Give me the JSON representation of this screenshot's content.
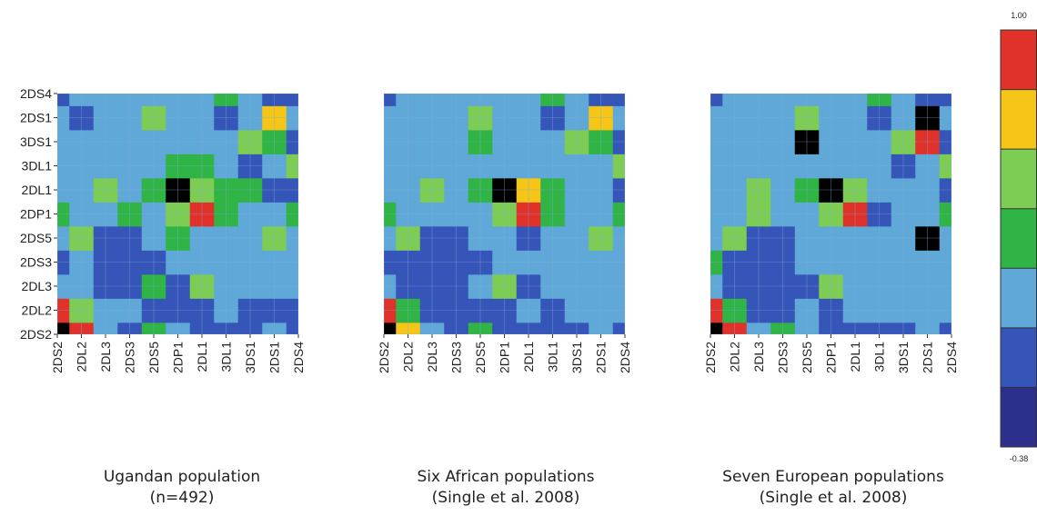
{
  "chart_data": {
    "type": "heatmap",
    "labels": [
      "2DS2",
      "2DL2",
      "2DL3",
      "2DS3",
      "2DS5",
      "2DP1",
      "2DL1",
      "3DL1",
      "3DS1",
      "2DS1",
      "2DS4"
    ],
    "colorbar": {
      "max_label": "1.00",
      "min_label": "-0.38",
      "colors_top_to_bottom": [
        "#e0312a",
        "#f5c518",
        "#7dcd55",
        "#2fb445",
        "#5fa8d8",
        "#3555b8",
        "#2d2f8c"
      ]
    },
    "panels": [
      {
        "caption_line1": "Ugandan population",
        "caption_line2": "(n=492)",
        "show_y_labels": true,
        "matrix": [
          [
            7,
            6,
            2,
            1,
            3,
            2,
            1,
            1,
            1,
            2,
            1
          ],
          [
            6,
            4,
            2,
            2,
            1,
            1,
            1,
            2,
            1,
            1,
            1
          ],
          [
            2,
            2,
            1,
            1,
            3,
            1,
            4,
            2,
            2,
            2,
            2
          ],
          [
            1,
            2,
            1,
            1,
            1,
            2,
            2,
            2,
            2,
            2,
            2
          ],
          [
            2,
            4,
            1,
            1,
            2,
            3,
            2,
            2,
            2,
            4,
            2
          ],
          [
            3,
            2,
            2,
            3,
            2,
            4,
            6,
            3,
            2,
            2,
            3
          ],
          [
            2,
            2,
            4,
            2,
            3,
            7,
            4,
            3,
            3,
            1,
            1
          ],
          [
            2,
            2,
            2,
            2,
            2,
            3,
            3,
            2,
            1,
            2,
            4
          ],
          [
            2,
            2,
            2,
            2,
            2,
            2,
            2,
            2,
            4,
            3,
            1
          ],
          [
            2,
            1,
            2,
            2,
            4,
            2,
            2,
            1,
            2,
            5,
            2
          ],
          [
            1,
            2,
            2,
            2,
            2,
            2,
            2,
            3,
            2,
            1,
            1
          ]
        ]
      },
      {
        "caption_line1": "Six African populations",
        "caption_line2": "(Single et al. 2008)",
        "show_y_labels": false,
        "matrix": [
          [
            7,
            5,
            2,
            1,
            3,
            1,
            1,
            1,
            1,
            2,
            1
          ],
          [
            6,
            3,
            1,
            1,
            1,
            1,
            2,
            1,
            2,
            2,
            2
          ],
          [
            2,
            1,
            1,
            1,
            2,
            4,
            1,
            2,
            2,
            2,
            2
          ],
          [
            1,
            1,
            1,
            1,
            1,
            2,
            2,
            2,
            2,
            2,
            2
          ],
          [
            2,
            4,
            1,
            1,
            2,
            2,
            1,
            2,
            2,
            4,
            2
          ],
          [
            3,
            2,
            2,
            2,
            2,
            4,
            6,
            3,
            2,
            2,
            3
          ],
          [
            2,
            2,
            4,
            2,
            3,
            7,
            5,
            3,
            2,
            2,
            1
          ],
          [
            2,
            2,
            2,
            2,
            2,
            2,
            2,
            2,
            2,
            2,
            4
          ],
          [
            2,
            2,
            2,
            2,
            3,
            2,
            2,
            2,
            4,
            3,
            1
          ],
          [
            2,
            2,
            2,
            2,
            4,
            2,
            2,
            1,
            2,
            5,
            2
          ],
          [
            1,
            2,
            2,
            2,
            2,
            2,
            2,
            3,
            2,
            1,
            1
          ]
        ]
      },
      {
        "caption_line1": "Seven European populations",
        "caption_line2": "(Single et al. 2008)",
        "show_y_labels": false,
        "matrix": [
          [
            7,
            6,
            2,
            3,
            2,
            1,
            1,
            1,
            1,
            2,
            1
          ],
          [
            6,
            3,
            1,
            1,
            2,
            1,
            2,
            2,
            2,
            2,
            2
          ],
          [
            2,
            1,
            1,
            1,
            1,
            4,
            2,
            2,
            2,
            2,
            2
          ],
          [
            3,
            1,
            1,
            1,
            2,
            2,
            2,
            2,
            2,
            2,
            2
          ],
          [
            2,
            4,
            1,
            1,
            2,
            2,
            2,
            2,
            2,
            7,
            2
          ],
          [
            2,
            2,
            4,
            2,
            2,
            4,
            6,
            1,
            2,
            2,
            3
          ],
          [
            2,
            2,
            4,
            2,
            3,
            7,
            4,
            2,
            2,
            2,
            1
          ],
          [
            2,
            2,
            2,
            2,
            2,
            2,
            2,
            2,
            1,
            2,
            4
          ],
          [
            2,
            2,
            2,
            2,
            7,
            2,
            2,
            2,
            4,
            6,
            1
          ],
          [
            2,
            2,
            2,
            2,
            4,
            2,
            2,
            1,
            2,
            7,
            2
          ],
          [
            1,
            2,
            2,
            2,
            2,
            2,
            2,
            3,
            2,
            1,
            1
          ]
        ]
      }
    ]
  }
}
